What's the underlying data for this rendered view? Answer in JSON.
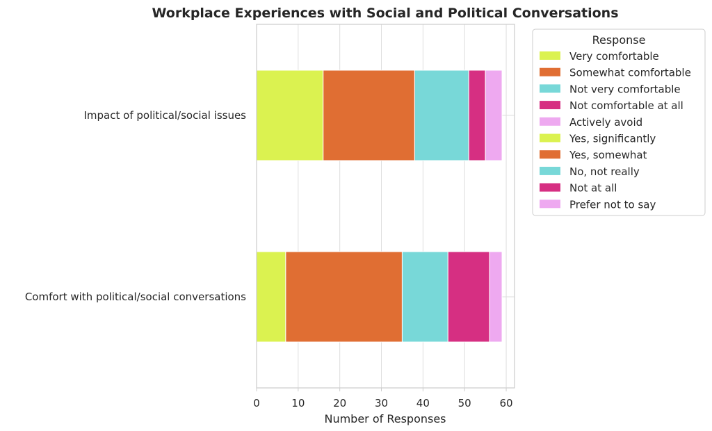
{
  "chart_data": {
    "type": "bar",
    "orientation": "horizontal",
    "stacked": true,
    "title": "Workplace Experiences with Social and Political Conversations",
    "xlabel": "Number of Responses",
    "ylabel": "",
    "xlim": [
      0,
      62
    ],
    "xticks": [
      0,
      10,
      20,
      30,
      40,
      50,
      60
    ],
    "grid": true,
    "legend_position": "top-right outside",
    "legend_title": "Response",
    "categories": [
      "Impact of political/social issues",
      "Comfort with political/social conversations"
    ],
    "series": [
      {
        "name": "Very comfortable",
        "color": "#dbf250",
        "values": [
          0,
          7
        ]
      },
      {
        "name": "Somewhat comfortable",
        "color": "#e06e33",
        "values": [
          0,
          28
        ]
      },
      {
        "name": "Not very comfortable",
        "color": "#78d8d8",
        "values": [
          0,
          11
        ]
      },
      {
        "name": "Not comfortable at all",
        "color": "#d62f82",
        "values": [
          0,
          10
        ]
      },
      {
        "name": "Actively avoid",
        "color": "#eea9f0",
        "values": [
          0,
          3
        ]
      },
      {
        "name": "Yes, significantly",
        "color": "#dbf250",
        "values": [
          16,
          0
        ]
      },
      {
        "name": "Yes, somewhat",
        "color": "#e06e33",
        "values": [
          22,
          0
        ]
      },
      {
        "name": "No, not really",
        "color": "#78d8d8",
        "values": [
          13,
          0
        ]
      },
      {
        "name": "Not at all",
        "color": "#d62f82",
        "values": [
          4,
          0
        ]
      },
      {
        "name": "Prefer not to say",
        "color": "#eea9f0",
        "values": [
          4,
          0
        ]
      }
    ]
  }
}
